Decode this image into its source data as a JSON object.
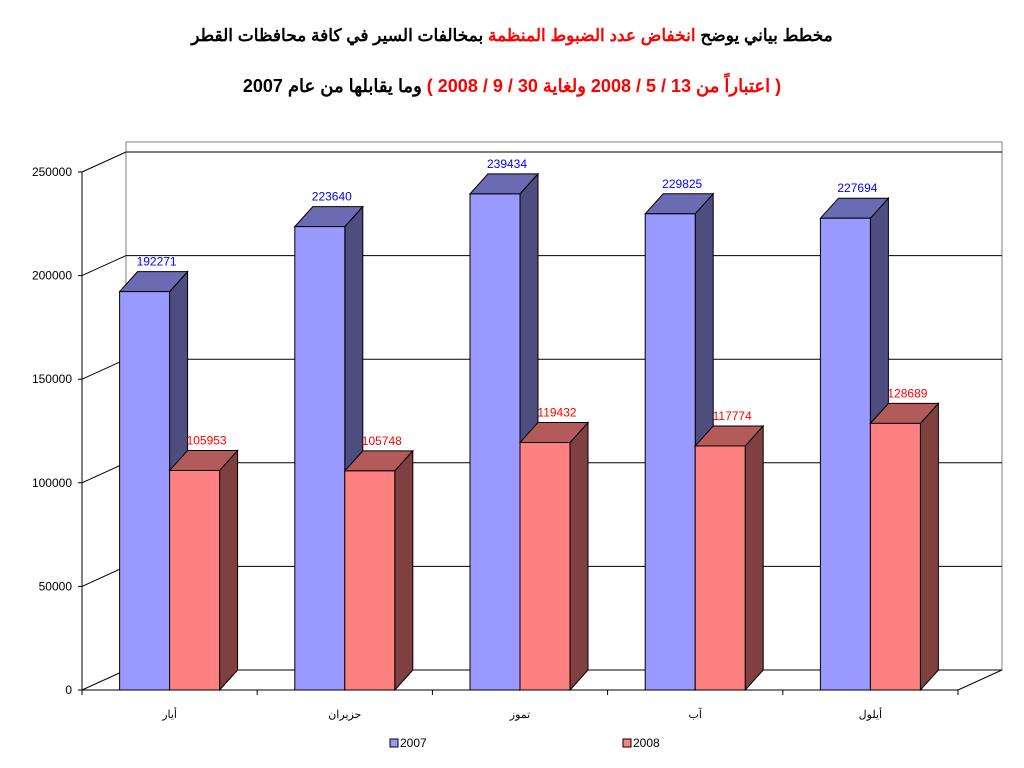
{
  "title": {
    "line1_part1": "مخطط بياني يوضح",
    "line1_part2": "انخفاض عدد الضبوط المنظمة",
    "line1_part3": "بمخالفات السير في كافة محافظات القطر",
    "line2_part1": "( اعتباراً من 13 / 5 / 2008 ولغاية 30 / 9 / 2008 )",
    "line2_part2": "وما يقابلها من عام 2007"
  },
  "colors": {
    "series_2007": "#9999ff",
    "series_2008": "#ff8080",
    "title_red": "#ff0000",
    "label_2007": "#0000ff",
    "label_2008": "#ff0000"
  },
  "chart_data": {
    "type": "bar",
    "categories": [
      "أيار",
      "حزيران",
      "تموز",
      "آب",
      "أيلول"
    ],
    "series": [
      {
        "name": "2007",
        "values": [
          192271,
          223640,
          239434,
          229825,
          227694
        ]
      },
      {
        "name": "2008",
        "values": [
          105953,
          105748,
          119432,
          117774,
          128689
        ]
      }
    ],
    "y_ticks": [
      "0",
      "50000",
      "100000",
      "150000",
      "200000",
      "250000"
    ],
    "ylim": [
      0,
      250000
    ],
    "grid": true,
    "legend": "bottom",
    "three_d": true
  }
}
